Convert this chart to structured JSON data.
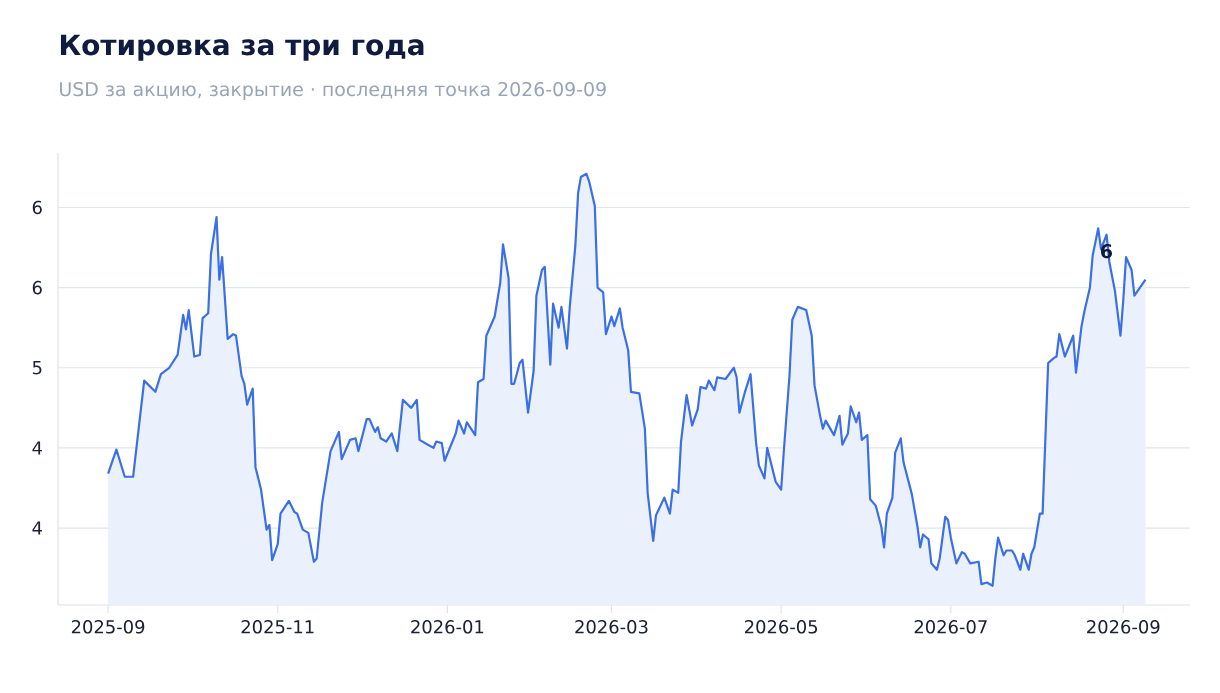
{
  "chart_data": {
    "type": "area",
    "title": "Котировка за три года",
    "subtitle": "USD за акцию, закрытие · последняя точка 2026-09-09",
    "series": [
      {
        "color": "#3b6fe5",
        "x": [
          "2025-09-01",
          "2025-09-04",
          "2025-09-07",
          "2025-09-10",
          "2025-09-13",
          "2025-09-14",
          "2025-09-18",
          "2025-09-20",
          "2025-09-23",
          "2025-09-26",
          "2025-09-28",
          "2025-09-29",
          "2025-09-30",
          "2025-10-02",
          "2025-10-04",
          "2025-10-05",
          "2025-10-07",
          "2025-10-08",
          "2025-10-10",
          "2025-10-11",
          "2025-10-12",
          "2025-10-14",
          "2025-10-16",
          "2025-10-17",
          "2025-10-19",
          "2025-10-20",
          "2025-10-21",
          "2025-10-23",
          "2025-10-24",
          "2025-10-26",
          "2025-10-28",
          "2025-10-29",
          "2025-10-30",
          "2025-11-01",
          "2025-11-02",
          "2025-11-05",
          "2025-11-07",
          "2025-11-08",
          "2025-11-10",
          "2025-11-12",
          "2025-11-14",
          "2025-11-15",
          "2025-11-17",
          "2025-11-20",
          "2025-11-23",
          "2025-11-24",
          "2025-11-27",
          "2025-11-29",
          "2025-11-30",
          "2025-12-03",
          "2025-12-04",
          "2025-12-06",
          "2025-12-07",
          "2025-12-08",
          "2025-12-10",
          "2025-12-12",
          "2025-12-14",
          "2025-12-16",
          "2025-12-19",
          "2025-12-21",
          "2025-12-22",
          "2025-12-25",
          "2025-12-27",
          "2025-12-28",
          "2025-12-30",
          "2025-12-31",
          "2026-01-04",
          "2026-01-05",
          "2026-01-07",
          "2026-01-08",
          "2026-01-11",
          "2026-01-12",
          "2026-01-14",
          "2026-01-15",
          "2026-01-18",
          "2026-01-20",
          "2026-01-21",
          "2026-01-23",
          "2026-01-24",
          "2026-01-25",
          "2026-01-27",
          "2026-01-28",
          "2026-01-30",
          "2026-02-01",
          "2026-02-02",
          "2026-02-04",
          "2026-02-05",
          "2026-02-07",
          "2026-02-08",
          "2026-02-10",
          "2026-02-11",
          "2026-02-13",
          "2026-02-14",
          "2026-02-16",
          "2026-02-17",
          "2026-02-18",
          "2026-02-20",
          "2026-02-21",
          "2026-02-23",
          "2026-02-24",
          "2026-02-26",
          "2026-02-27",
          "2026-03-01",
          "2026-03-02",
          "2026-03-04",
          "2026-03-05",
          "2026-03-07",
          "2026-03-08",
          "2026-03-11",
          "2026-03-13",
          "2026-03-14",
          "2026-03-16",
          "2026-03-17",
          "2026-03-20",
          "2026-03-22",
          "2026-03-23",
          "2026-03-25",
          "2026-03-26",
          "2026-03-28",
          "2026-03-30",
          "2026-04-01",
          "2026-04-02",
          "2026-04-04",
          "2026-04-05",
          "2026-04-07",
          "2026-04-08",
          "2026-04-11",
          "2026-04-14",
          "2026-04-15",
          "2026-04-16",
          "2026-04-18",
          "2026-04-20",
          "2026-04-22",
          "2026-04-23",
          "2026-04-25",
          "2026-04-26",
          "2026-04-28",
          "2026-04-29",
          "2026-05-01",
          "2026-05-02",
          "2026-05-04",
          "2026-05-05",
          "2026-05-07",
          "2026-05-10",
          "2026-05-12",
          "2026-05-13",
          "2026-05-15",
          "2026-05-16",
          "2026-05-17",
          "2026-05-20",
          "2026-05-22",
          "2026-05-23",
          "2026-05-25",
          "2026-05-26",
          "2026-05-28",
          "2026-05-29",
          "2026-05-30",
          "2026-06-01",
          "2026-06-02",
          "2026-06-04",
          "2026-06-06",
          "2026-06-07",
          "2026-06-08",
          "2026-06-10",
          "2026-06-11",
          "2026-06-13",
          "2026-06-14",
          "2026-06-17",
          "2026-06-19",
          "2026-06-20",
          "2026-06-21",
          "2026-06-23",
          "2026-06-24",
          "2026-06-26",
          "2026-06-27",
          "2026-06-29",
          "2026-06-30",
          "2026-07-01",
          "2026-07-03",
          "2026-07-05",
          "2026-07-06",
          "2026-07-08",
          "2026-07-11",
          "2026-07-12",
          "2026-07-14",
          "2026-07-16",
          "2026-07-17",
          "2026-07-18",
          "2026-07-20",
          "2026-07-21",
          "2026-07-23",
          "2026-07-24",
          "2026-07-26",
          "2026-07-27",
          "2026-07-29",
          "2026-07-30",
          "2026-07-31",
          "2026-08-02",
          "2026-08-03",
          "2026-08-05",
          "2026-08-07",
          "2026-08-08",
          "2026-08-09",
          "2026-08-11",
          "2026-08-14",
          "2026-08-15",
          "2026-08-17",
          "2026-08-18",
          "2026-08-20",
          "2026-08-21",
          "2026-08-23",
          "2026-08-24",
          "2026-08-26",
          "2026-08-27",
          "2026-08-29",
          "2026-08-31",
          "2026-09-01",
          "2026-09-02",
          "2026-09-04",
          "2026-09-05",
          "2026-09-09"
        ],
        "values": [
          4.34,
          4.49,
          4.32,
          4.32,
          4.77,
          4.92,
          4.85,
          4.96,
          5.0,
          5.08,
          5.33,
          5.24,
          5.36,
          5.07,
          5.08,
          5.31,
          5.34,
          5.71,
          5.94,
          5.55,
          5.69,
          5.18,
          5.21,
          5.2,
          4.95,
          4.9,
          4.77,
          4.87,
          4.38,
          4.24,
          3.99,
          4.02,
          3.8,
          3.9,
          4.09,
          4.17,
          4.1,
          4.09,
          3.99,
          3.97,
          3.79,
          3.81,
          4.16,
          4.48,
          4.6,
          4.43,
          4.55,
          4.56,
          4.48,
          4.68,
          4.68,
          4.6,
          4.63,
          4.56,
          4.54,
          4.59,
          4.48,
          4.8,
          4.75,
          4.8,
          4.55,
          4.52,
          4.5,
          4.54,
          4.53,
          4.42,
          4.59,
          4.67,
          4.59,
          4.66,
          4.58,
          4.91,
          4.93,
          5.2,
          5.32,
          5.53,
          5.77,
          5.56,
          4.9,
          4.9,
          5.03,
          5.05,
          4.72,
          4.98,
          5.45,
          5.61,
          5.63,
          5.02,
          5.4,
          5.25,
          5.38,
          5.12,
          5.38,
          5.76,
          6.09,
          6.19,
          6.21,
          6.16,
          6.01,
          5.5,
          5.47,
          5.21,
          5.32,
          5.26,
          5.37,
          5.25,
          5.11,
          4.85,
          4.84,
          4.62,
          4.22,
          3.92,
          4.08,
          4.19,
          4.09,
          4.24,
          4.22,
          4.54,
          4.83,
          4.64,
          4.74,
          4.88,
          4.87,
          4.92,
          4.86,
          4.94,
          4.93,
          5.0,
          4.94,
          4.72,
          4.85,
          4.96,
          4.53,
          4.39,
          4.31,
          4.5,
          4.36,
          4.29,
          4.24,
          4.49,
          4.95,
          5.3,
          5.38,
          5.36,
          5.2,
          4.89,
          4.7,
          4.62,
          4.67,
          4.58,
          4.7,
          4.52,
          4.59,
          4.76,
          4.66,
          4.72,
          4.55,
          4.58,
          4.18,
          4.14,
          4.01,
          3.88,
          4.09,
          4.19,
          4.47,
          4.56,
          4.41,
          4.21,
          4.01,
          3.88,
          3.96,
          3.93,
          3.78,
          3.74,
          3.81,
          4.07,
          4.05,
          3.94,
          3.78,
          3.85,
          3.84,
          3.78,
          3.79,
          3.65,
          3.66,
          3.64,
          3.81,
          3.94,
          3.83,
          3.86,
          3.86,
          3.83,
          3.74,
          3.84,
          3.74,
          3.84,
          3.88,
          4.09,
          4.09,
          5.03,
          5.06,
          5.07,
          5.21,
          5.07,
          5.2,
          4.97,
          5.26,
          5.35,
          5.5,
          5.7,
          5.87,
          5.74,
          5.83,
          5.66,
          5.48,
          5.2,
          5.42,
          5.69,
          5.61,
          5.45,
          5.55
        ]
      }
    ],
    "annotations": [
      {
        "text": "6",
        "x": "2026-09-02",
        "y": 5.69
      }
    ],
    "xlim": [
      "2025-08-14",
      "2026-09-25"
    ],
    "xticks": [
      {
        "value": "2025-09-01",
        "label": "2025-09"
      },
      {
        "value": "2025-11-01",
        "label": "2025-11"
      },
      {
        "value": "2026-01-01",
        "label": "2026-01"
      },
      {
        "value": "2026-03-01",
        "label": "2026-03"
      },
      {
        "value": "2026-05-01",
        "label": "2026-05"
      },
      {
        "value": "2026-07-01",
        "label": "2026-07"
      },
      {
        "value": "2026-09-01",
        "label": "2026-09"
      }
    ],
    "ylim": [
      3.52,
      6.34
    ],
    "yticks": [
      4,
      {
        "value": 4.5,
        "label": "4"
      },
      5,
      {
        "value": 5.5,
        "label": "6"
      },
      6
    ],
    "grid": "y"
  }
}
